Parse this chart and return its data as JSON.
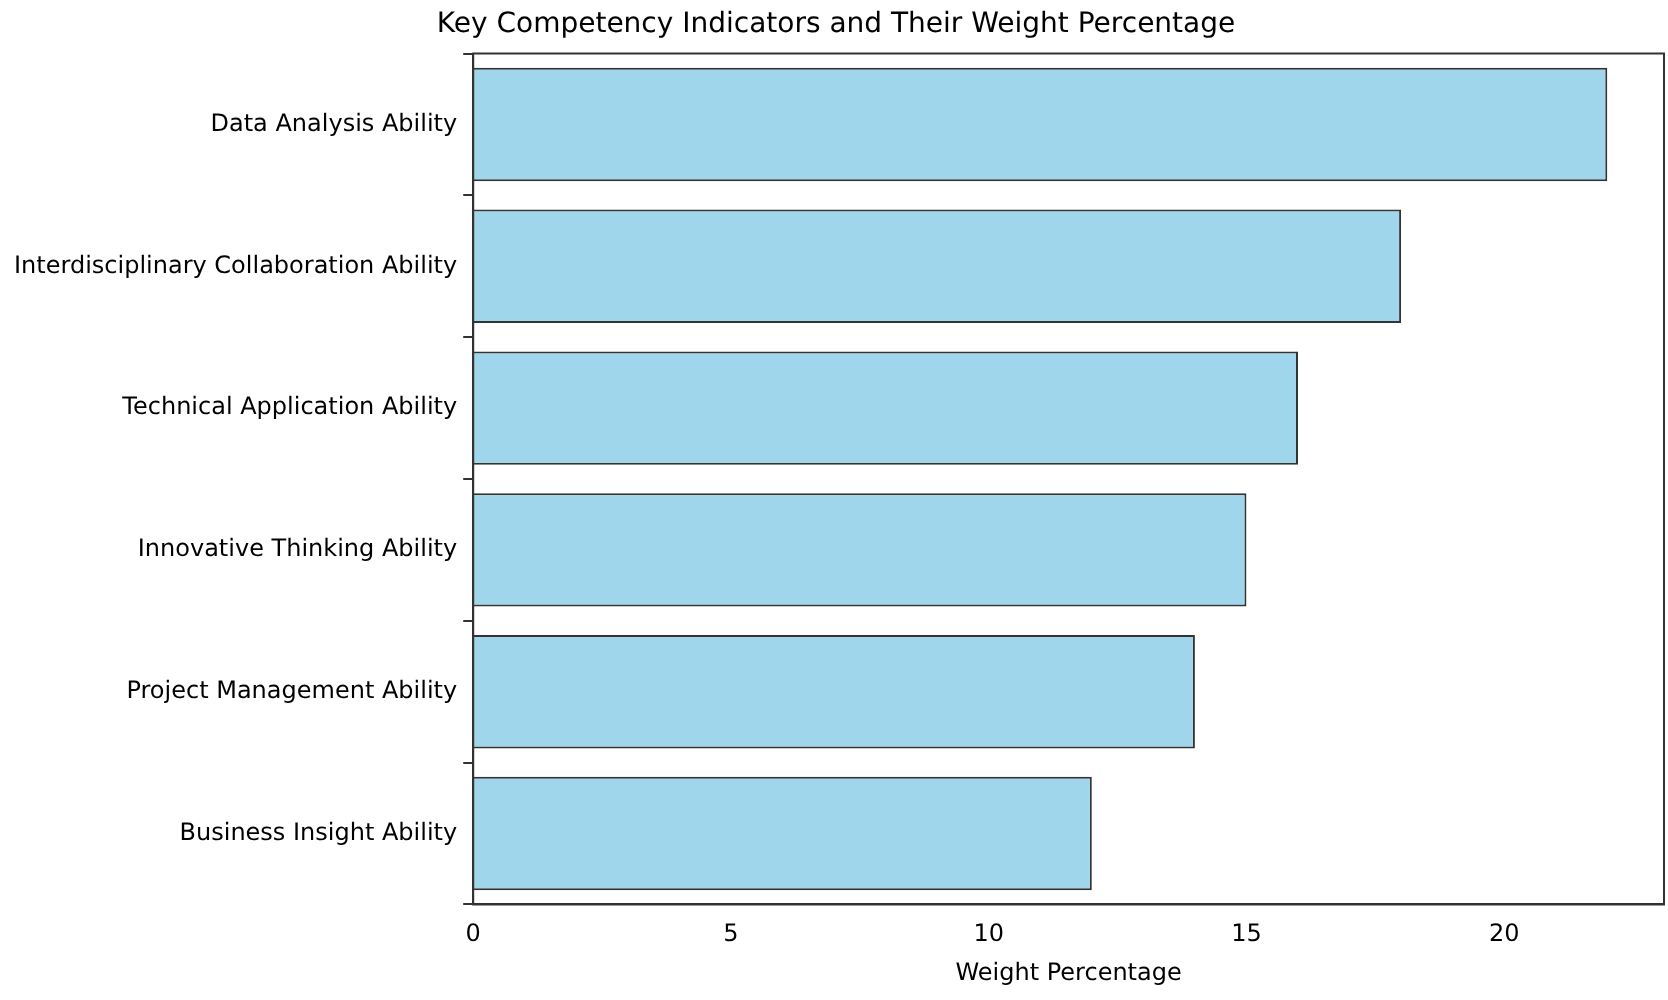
{
  "chart_data": {
    "type": "bar",
    "orientation": "horizontal",
    "title": "Key Competency Indicators and Their Weight Percentage",
    "xlabel": "Weight Percentage",
    "categories": [
      "Data Analysis Ability",
      "Interdisciplinary Collaboration Ability",
      "Technical Application Ability",
      "Innovative Thinking Ability",
      "Project Management Ability",
      "Business Insight Ability"
    ],
    "values": [
      22,
      18,
      16,
      15,
      14,
      12
    ],
    "color": "#a0d6ec",
    "xlim": [
      0,
      23.1
    ],
    "xticks": [
      0,
      5,
      10,
      15,
      20
    ],
    "grid": false,
    "legend": false
  }
}
